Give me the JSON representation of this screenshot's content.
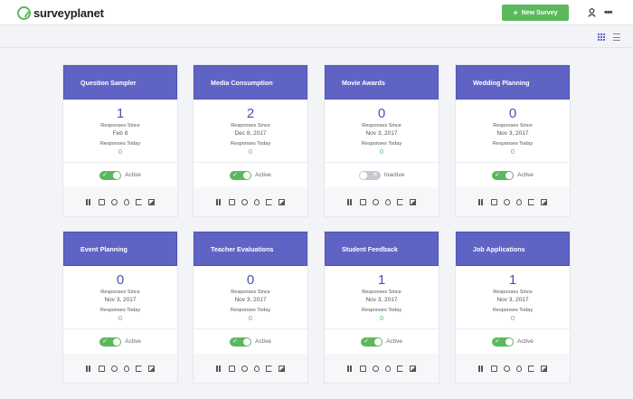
{
  "brand": {
    "name": "surveyplanet"
  },
  "header": {
    "new_survey_label": "New Survey",
    "plus": "+",
    "more": "•••"
  },
  "colors": {
    "accent": "#5f64c4",
    "green": "#5cb85c"
  },
  "labels": {
    "responses_since": "Responses Since",
    "responses_today": "Responses Today",
    "active": "Active",
    "inactive": "Inactive"
  },
  "cards": [
    {
      "title": "Question Sampler",
      "count": "1",
      "since": "Feb 8",
      "today": "0",
      "active": true,
      "status": "Active"
    },
    {
      "title": "Media Consumption",
      "count": "2",
      "since": "Dec 8, 2017",
      "today": "0",
      "active": true,
      "status": "Active"
    },
    {
      "title": "Movie Awards",
      "count": "0",
      "since": "Nov 3, 2017",
      "today": "0",
      "active": false,
      "status": "Inactive"
    },
    {
      "title": "Wedding Planning",
      "count": "0",
      "since": "Nov 3, 2017",
      "today": "0",
      "active": true,
      "status": "Active"
    },
    {
      "title": "Event Planning",
      "count": "0",
      "since": "Nov 3, 2017",
      "today": "0",
      "active": true,
      "status": "Active"
    },
    {
      "title": "Teacher Evaluations",
      "count": "0",
      "since": "Nov 3, 2017",
      "today": "0",
      "active": true,
      "status": "Active"
    },
    {
      "title": "Student Feedback",
      "count": "1",
      "since": "Nov 3, 2017",
      "today": "0",
      "active": true,
      "status": "Active"
    },
    {
      "title": "Job Applications",
      "count": "1",
      "since": "Nov 3, 2017",
      "today": "0",
      "active": true,
      "status": "Active"
    }
  ],
  "card_actions": [
    "pause-icon",
    "message-icon",
    "gauge-icon",
    "drop-icon",
    "share-icon",
    "image-icon"
  ]
}
